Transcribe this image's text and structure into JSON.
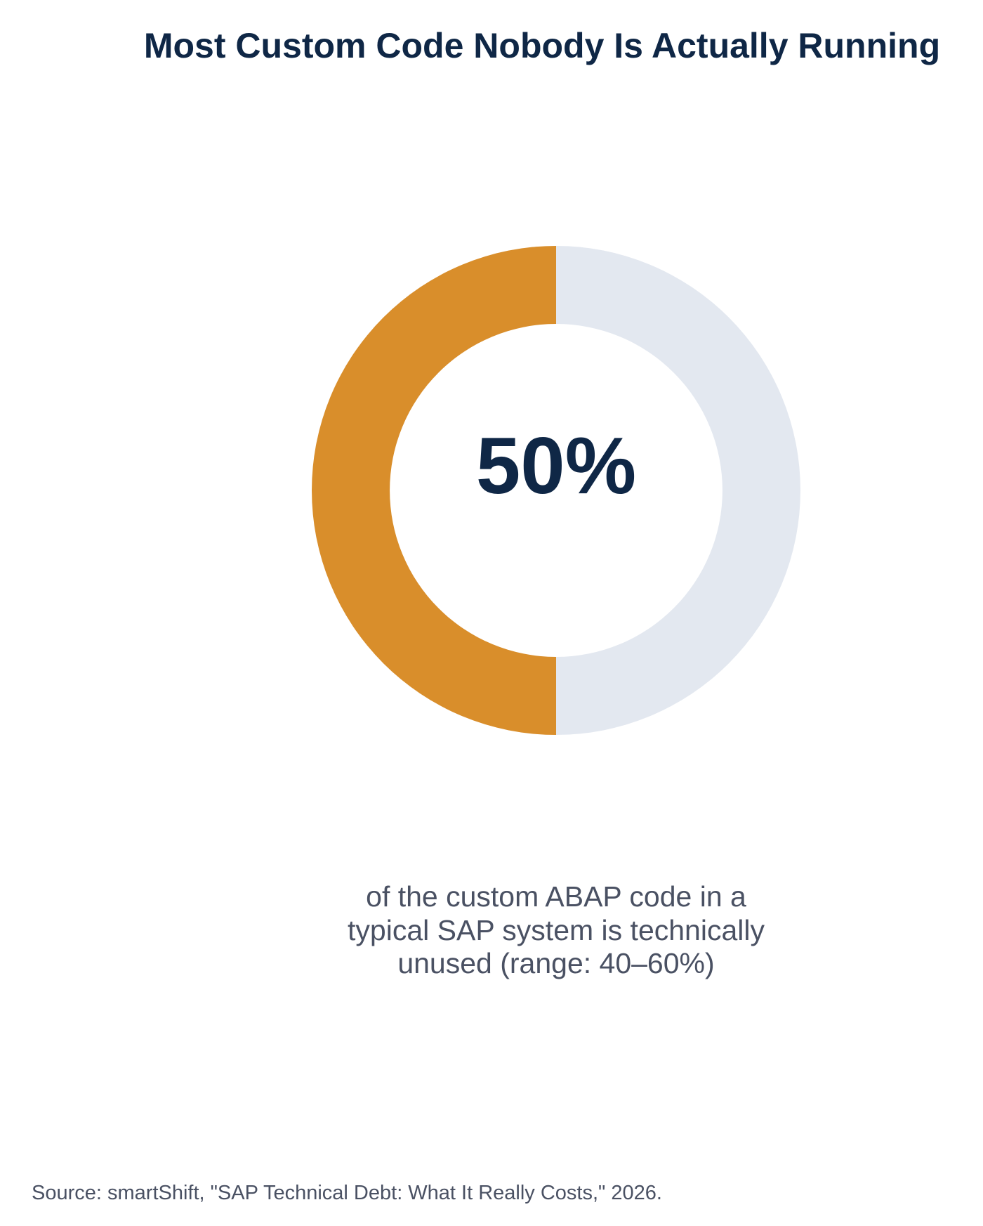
{
  "chart_data": {
    "type": "donut",
    "title": "Most Custom Code Nobody Is Actually Running",
    "categories": [
      null,
      null
    ],
    "values": [
      50,
      50
    ],
    "value_labels": [
      "50%",
      null
    ],
    "colors": [
      "#d98e2b",
      "#e3e8f0"
    ],
    "caption": "of the custom ABAP code in a typical SAP system is technically unused (range: 40–60%)",
    "source": "Source: smartShift, \"SAP Technical Debt: What It Really Costs,\" 2026."
  }
}
